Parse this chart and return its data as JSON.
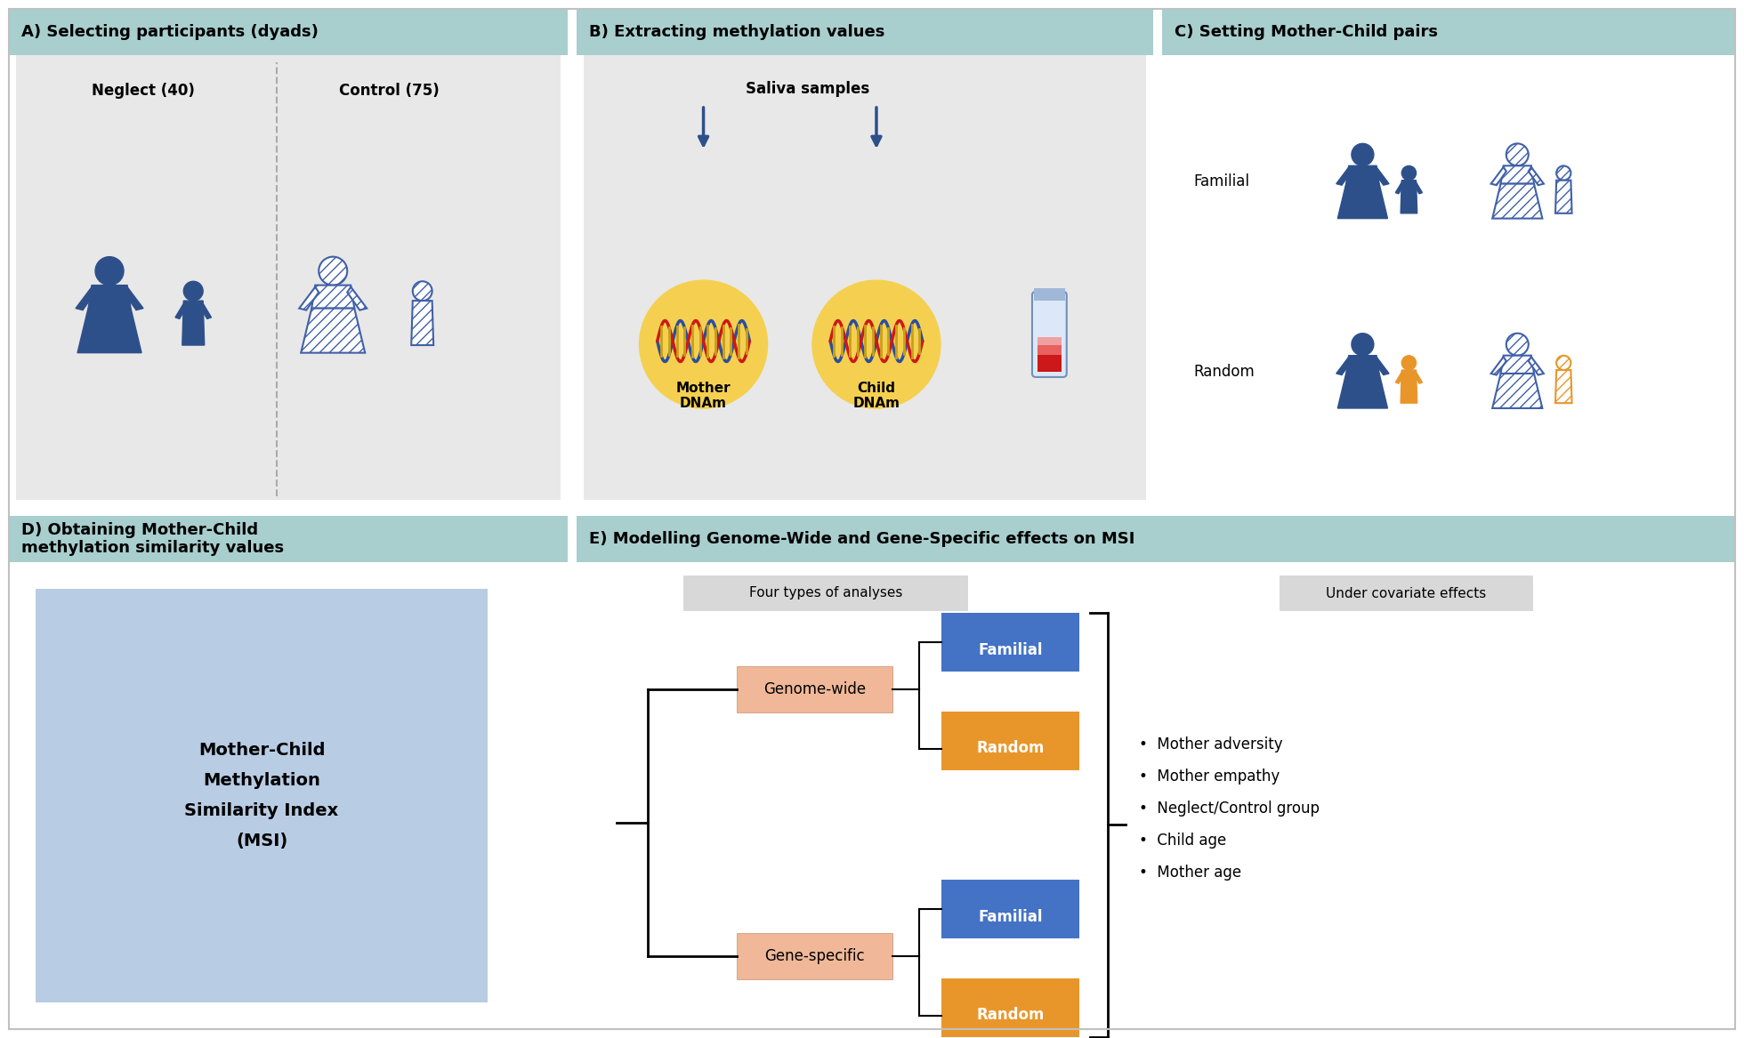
{
  "bg_color": "#ffffff",
  "header_color": "#a8cece",
  "panel_bg_light": "#e8e8e8",
  "panel_bg_blue_light": "#b8cce4",
  "box_salmon": "#f0b898",
  "box_blue": "#4472c4",
  "box_orange": "#e8962a",
  "dark_blue": "#2e508a",
  "figure_hatched_color": "#4060a8",
  "orange_color": "#e8962a",
  "header_A": "A) Selecting participants (dyads)",
  "header_B": "B) Extracting methylation values",
  "header_C": "C) Setting Mother-Child pairs",
  "header_D": "D) Obtaining Mother-Child\nmethylation similarity values",
  "header_E": "E) Modelling Genome-Wide and Gene-Specific effects on MSI",
  "neglect_label": "Neglect (40)",
  "control_label": "Control (75)",
  "saliva_label": "Saliva samples",
  "mother_dnam": "Mother\nDNAm",
  "child_dnam": "Child\nDNAm",
  "familial_label": "Familial",
  "random_label": "Random",
  "msi_label": "Mother-Child\nMethylation\nSimilarity Index\n(MSI)",
  "four_types": "Four types of analyses",
  "covariate_label": "Under covariate effects",
  "genome_wide": "Genome-wide",
  "gene_specific": "Gene-specific",
  "familial_box": "Familial",
  "random_box": "Random",
  "covariates": [
    "Mother adversity",
    "Mother empathy",
    "Neglect/Control group",
    "Child age",
    "Mother age"
  ]
}
